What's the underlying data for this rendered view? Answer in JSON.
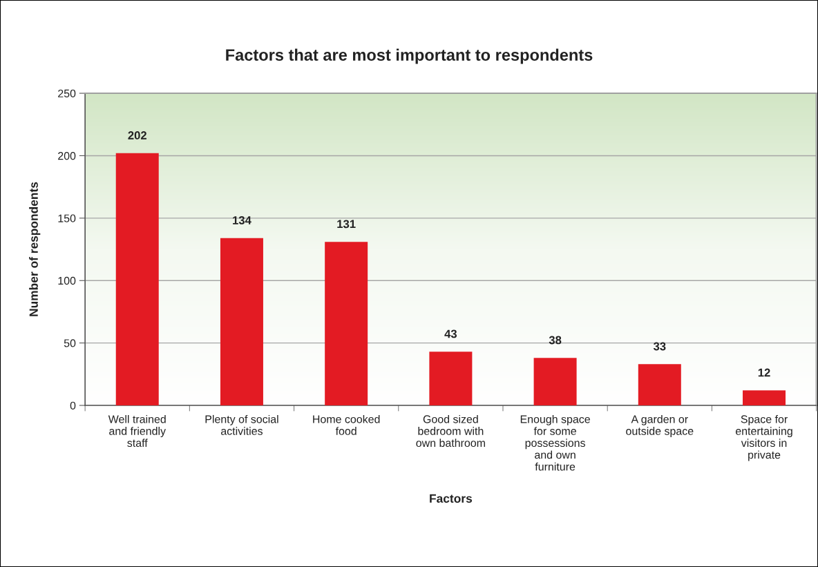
{
  "chart_data": {
    "type": "bar",
    "title": "Factors that are most important to respondents",
    "xlabel": "Factors",
    "ylabel": "Number of respondents",
    "categories": [
      "Well trained\nand friendly\nstaff",
      "Plenty of social\nactivities",
      "Home cooked\nfood",
      "Good sized\nbedroom with\nown bathroom",
      "Enough space\nfor some\npossessions\nand own\nfurniture",
      "A garden or\noutside space",
      "Space for\nentertaining\nvisitors in\nprivate"
    ],
    "values": [
      202,
      134,
      131,
      43,
      38,
      33,
      12
    ],
    "color": "#e31b23",
    "ylim": [
      0,
      250
    ],
    "yticks": [
      0,
      50,
      100,
      150,
      200,
      250
    ],
    "grid": "y",
    "data_labels": true,
    "legend": false
  }
}
